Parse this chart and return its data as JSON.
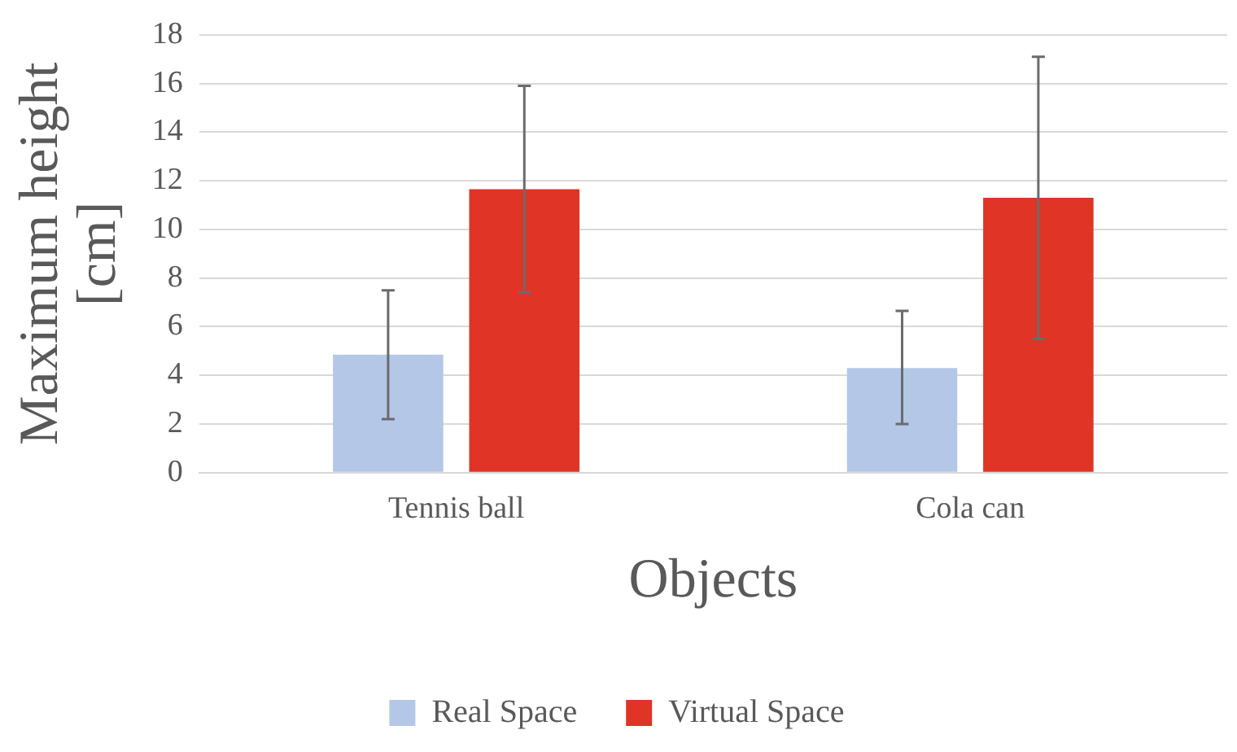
{
  "chart_data": {
    "type": "bar",
    "xlabel": "Objects",
    "ylabel": "Maximum height [cm]",
    "categories": [
      "Tennis ball",
      "Cola can"
    ],
    "series": [
      {
        "name": "Real Space",
        "color": "#b4c7e7",
        "values": [
          4.85,
          4.3
        ],
        "errors": [
          [
            2.2,
            7.5
          ],
          [
            2.0,
            6.65
          ]
        ]
      },
      {
        "name": "Virtual Space",
        "color": "#e03426",
        "values": [
          11.65,
          11.3
        ],
        "errors": [
          [
            7.4,
            15.9
          ],
          [
            5.5,
            17.1
          ]
        ]
      }
    ],
    "ylim": [
      0,
      18
    ],
    "yticks": [
      0,
      2,
      4,
      6,
      8,
      10,
      12,
      14,
      16,
      18
    ],
    "grid": "y",
    "legend": "bottom"
  }
}
